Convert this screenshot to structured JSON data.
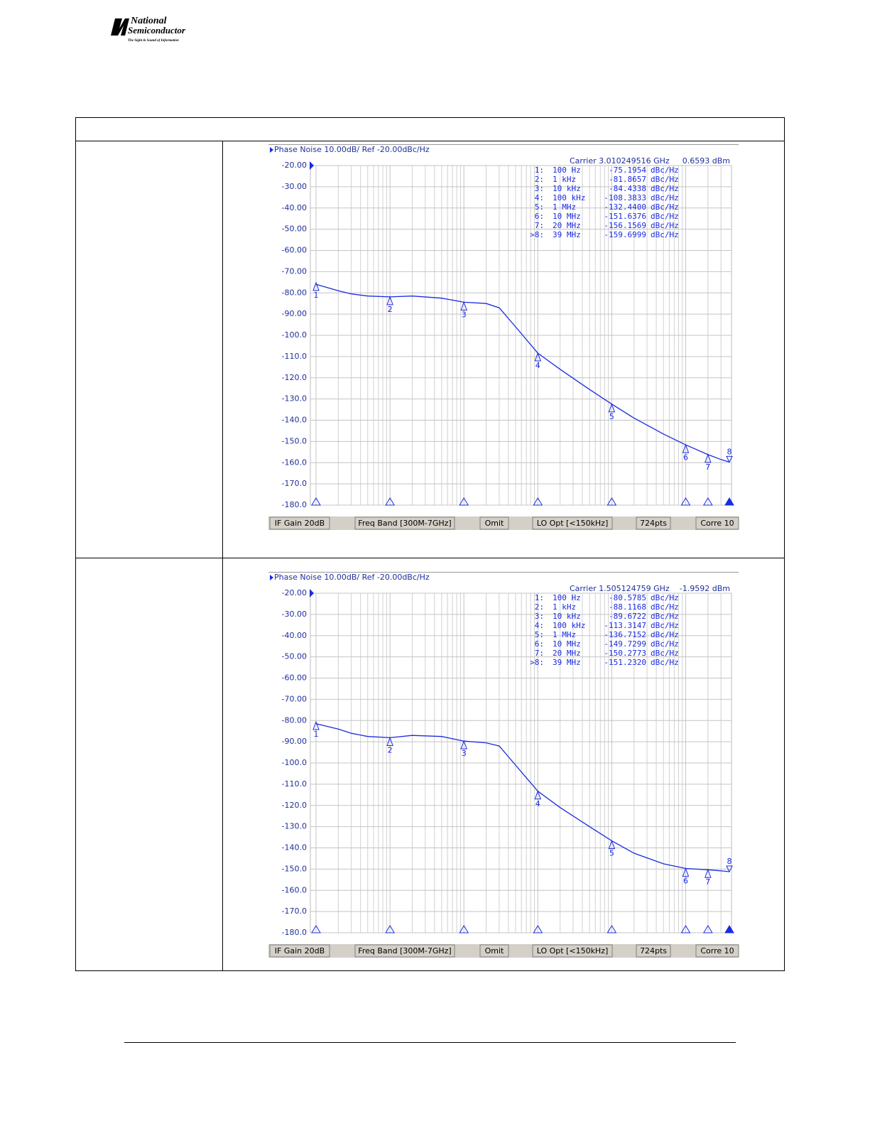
{
  "header": {
    "logo_line1": "National",
    "logo_line2": "Semiconductor",
    "logo_tagline": "The Sight & Sound of Information"
  },
  "chart_data": [
    {
      "type": "line",
      "title": "Phase Noise 10.00dB/ Ref -20.00dBc/Hz",
      "carrier": "Carrier 3.010249516 GHz",
      "carrier_power": "0.6593 dBm",
      "log_x": true,
      "grid": true,
      "color": "#1a2be0",
      "xlim": [
        100,
        39000000
      ],
      "ylim": [
        -180,
        -20
      ],
      "xticks": [
        100,
        1000,
        10000,
        100000,
        1000000,
        10000000
      ],
      "yticks": [
        {
          "value": -20,
          "label": "-20.00"
        },
        {
          "value": -30,
          "label": "-30.00"
        },
        {
          "value": -40,
          "label": "-40.00"
        },
        {
          "value": -50,
          "label": "-50.00"
        },
        {
          "value": -60,
          "label": "-60.00"
        },
        {
          "value": -70,
          "label": "-70.00"
        },
        {
          "value": -80,
          "label": "-80.00"
        },
        {
          "value": -90,
          "label": "-90.00"
        },
        {
          "value": -100,
          "label": "-100.0"
        },
        {
          "value": -110,
          "label": "-110.0"
        },
        {
          "value": -120,
          "label": "-120.0"
        },
        {
          "value": -130,
          "label": "-130.0"
        },
        {
          "value": -140,
          "label": "-140.0"
        },
        {
          "value": -150,
          "label": "-150.0"
        },
        {
          "value": -160,
          "label": "-160.0"
        },
        {
          "value": -170,
          "label": "-170.0"
        },
        {
          "value": -180,
          "label": "-180.0"
        }
      ],
      "x": [
        100,
        200,
        300,
        500,
        1000,
        2000,
        5000,
        10000,
        20000,
        30000,
        50000,
        70000,
        100000,
        200000,
        500000,
        1000000,
        2000000,
        5000000,
        10000000,
        20000000,
        30000000,
        39000000
      ],
      "values": [
        -76,
        -79,
        -80.5,
        -81.5,
        -81.9,
        -81.5,
        -82.5,
        -84.4,
        -85,
        -87,
        -96,
        -102,
        -108.4,
        -116,
        -125.5,
        -132.4,
        -139,
        -146.5,
        -151.6,
        -156.2,
        -158.5,
        -159.7
      ],
      "markers": {
        "ids": [
          "1",
          "2",
          "3",
          "4",
          "5",
          "6",
          "7",
          "8"
        ],
        "table_labels": [
          "1:",
          "2:",
          "3:",
          "4:",
          "5:",
          "6:",
          "7:",
          ">8:"
        ],
        "x": [
          100,
          1000,
          10000,
          100000,
          1000000,
          10000000,
          20000000,
          39000000
        ],
        "freq_labels": [
          "100 Hz",
          "1 kHz",
          "10 kHz",
          "100 kHz",
          "1 MHz",
          "10 MHz",
          "20 MHz",
          "39 MHz"
        ],
        "values": [
          -75.1954,
          -81.8657,
          -84.4338,
          -108.3833,
          -132.44,
          -151.6376,
          -156.1569,
          -159.6999
        ],
        "value_labels": [
          "-75.1954",
          "-81.8657",
          "-84.4338",
          "-108.3833",
          "-132.4400",
          "-151.6376",
          "-156.1569",
          "-159.6999"
        ],
        "unit": "dBc/Hz"
      },
      "status_bar": [
        "IF Gain 20dB",
        "Freq Band [300M-7GHz]",
        "Omit",
        "LO Opt [<150kHz]",
        "724pts",
        "Corre 10"
      ]
    },
    {
      "type": "line",
      "title": "Phase Noise 10.00dB/ Ref -20.00dBc/Hz",
      "carrier": "Carrier 1.505124759 GHz",
      "carrier_power": "-1.9592 dBm",
      "log_x": true,
      "grid": true,
      "color": "#1a2be0",
      "xlim": [
        100,
        39000000
      ],
      "ylim": [
        -180,
        -20
      ],
      "xticks": [
        100,
        1000,
        10000,
        100000,
        1000000,
        10000000
      ],
      "yticks": [
        {
          "value": -20,
          "label": "-20.00"
        },
        {
          "value": -30,
          "label": "-30.00"
        },
        {
          "value": -40,
          "label": "-40.00"
        },
        {
          "value": -50,
          "label": "-50.00"
        },
        {
          "value": -60,
          "label": "-60.00"
        },
        {
          "value": -70,
          "label": "-70.00"
        },
        {
          "value": -80,
          "label": "-80.00"
        },
        {
          "value": -90,
          "label": "-90.00"
        },
        {
          "value": -100,
          "label": "-100.0"
        },
        {
          "value": -110,
          "label": "-110.0"
        },
        {
          "value": -120,
          "label": "-120.0"
        },
        {
          "value": -130,
          "label": "-130.0"
        },
        {
          "value": -140,
          "label": "-140.0"
        },
        {
          "value": -150,
          "label": "-150.0"
        },
        {
          "value": -160,
          "label": "-160.0"
        },
        {
          "value": -170,
          "label": "-170.0"
        },
        {
          "value": -180,
          "label": "-180.0"
        }
      ],
      "x": [
        100,
        200,
        300,
        500,
        1000,
        2000,
        5000,
        10000,
        20000,
        30000,
        50000,
        70000,
        100000,
        200000,
        500000,
        1000000,
        2000000,
        5000000,
        10000000,
        20000000,
        30000000,
        39000000
      ],
      "values": [
        -81.5,
        -84,
        -86,
        -87.5,
        -88.1,
        -87,
        -87.5,
        -89.7,
        -90.5,
        -92,
        -101,
        -107,
        -113.3,
        -121,
        -130,
        -136.7,
        -142.5,
        -147.5,
        -149.7,
        -150.3,
        -150.8,
        -151.2
      ],
      "markers": {
        "ids": [
          "1",
          "2",
          "3",
          "4",
          "5",
          "6",
          "7",
          "8"
        ],
        "table_labels": [
          "1:",
          "2:",
          "3:",
          "4:",
          "5:",
          "6:",
          "7:",
          ">8:"
        ],
        "x": [
          100,
          1000,
          10000,
          100000,
          1000000,
          10000000,
          20000000,
          39000000
        ],
        "freq_labels": [
          "100 Hz",
          "1 kHz",
          "10 kHz",
          "100 kHz",
          "1 MHz",
          "10 MHz",
          "20 MHz",
          "39 MHz"
        ],
        "values": [
          -80.5785,
          -88.1168,
          -89.6722,
          -113.3147,
          -136.7152,
          -149.7299,
          -150.2773,
          -151.232
        ],
        "value_labels": [
          "-80.5785",
          "-88.1168",
          "-89.6722",
          "-113.3147",
          "-136.7152",
          "-149.7299",
          "-150.2773",
          "-151.2320"
        ],
        "unit": "dBc/Hz"
      },
      "status_bar": [
        "IF Gain 20dB",
        "Freq Band [300M-7GHz]",
        "Omit",
        "LO Opt [<150kHz]",
        "724pts",
        "Corre 10"
      ]
    }
  ]
}
